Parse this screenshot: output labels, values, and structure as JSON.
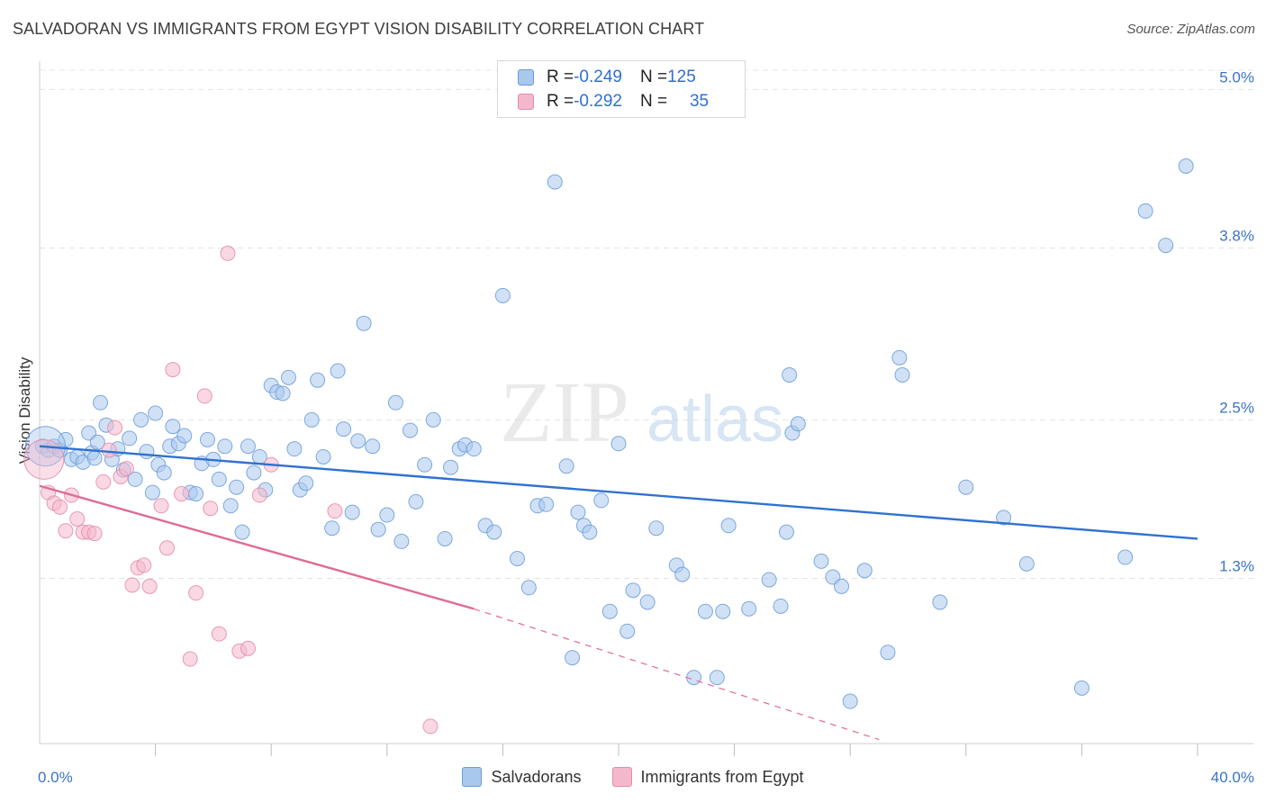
{
  "title": "SALVADORAN VS IMMIGRANTS FROM EGYPT VISION DISABILITY CORRELATION CHART",
  "source": "Source: ZipAtlas.com",
  "watermark": {
    "zip": "ZIP",
    "atlas": "atlas"
  },
  "colors": {
    "blue_fill": "#a9c8ee",
    "blue_stroke": "#6a9bd8",
    "blue_line": "#2f72d1",
    "pink_fill": "#f4b8cc",
    "pink_stroke": "#e68aa8",
    "pink_line": "#e06b95",
    "tick_text": "#3b73c7",
    "grid": "#e4e4e4"
  },
  "legend": {
    "rows": [
      {
        "r_label": "R = ",
        "r_value": "-0.249",
        "n_label": "N = ",
        "n_value": "125",
        "series": "blue"
      },
      {
        "r_label": "R = ",
        "r_value": "-0.292",
        "n_label": "N = ",
        "n_value": "35",
        "series": "pink"
      }
    ]
  },
  "bottom_legend": [
    {
      "label": "Salvadorans",
      "series": "blue"
    },
    {
      "label": "Immigrants from Egypt",
      "series": "pink"
    }
  ],
  "chart_data": {
    "type": "scatter",
    "title": "SALVADORAN VS IMMIGRANTS FROM EGYPT VISION DISABILITY CORRELATION CHART",
    "xlabel": "",
    "ylabel": "Vision Disability",
    "xlim": [
      0,
      40
    ],
    "ylim": [
      0.05,
      5.2
    ],
    "x_tick_labels": [
      {
        "value": 0,
        "label": "0.0%"
      },
      {
        "value": 40,
        "label": "40.0%"
      }
    ],
    "y_ticks": [
      {
        "value": 1.3,
        "label": "1.3%"
      },
      {
        "value": 2.5,
        "label": "2.5%"
      },
      {
        "value": 3.8,
        "label": "3.8%"
      },
      {
        "value": 5.0,
        "label": "5.0%"
      }
    ],
    "grid": true,
    "legend_position": "top-center",
    "series": [
      {
        "name": "Salvadorans",
        "color": "#a9c8ee",
        "points": [
          [
            0.1,
            2.3
          ],
          [
            0.3,
            2.27
          ],
          [
            0.5,
            2.3
          ],
          [
            0.7,
            2.27
          ],
          [
            0.9,
            2.35
          ],
          [
            1.1,
            2.2
          ],
          [
            1.3,
            2.22
          ],
          [
            1.5,
            2.18
          ],
          [
            1.7,
            2.4
          ],
          [
            1.8,
            2.25
          ],
          [
            1.9,
            2.21
          ],
          [
            2.0,
            2.33
          ],
          [
            2.1,
            2.63
          ],
          [
            2.3,
            2.46
          ],
          [
            2.5,
            2.2
          ],
          [
            2.7,
            2.28
          ],
          [
            2.9,
            2.12
          ],
          [
            3.1,
            2.36
          ],
          [
            3.3,
            2.05
          ],
          [
            3.5,
            2.5
          ],
          [
            3.7,
            2.26
          ],
          [
            3.9,
            1.95
          ],
          [
            4.0,
            2.55
          ],
          [
            4.1,
            2.16
          ],
          [
            4.3,
            2.1
          ],
          [
            4.5,
            2.3
          ],
          [
            4.6,
            2.45
          ],
          [
            4.8,
            2.32
          ],
          [
            5.0,
            2.38
          ],
          [
            5.2,
            1.95
          ],
          [
            5.4,
            1.94
          ],
          [
            5.6,
            2.17
          ],
          [
            5.8,
            2.35
          ],
          [
            6.0,
            2.2
          ],
          [
            6.2,
            2.05
          ],
          [
            6.4,
            2.3
          ],
          [
            6.6,
            1.85
          ],
          [
            6.8,
            1.99
          ],
          [
            7.0,
            1.65
          ],
          [
            7.2,
            2.3
          ],
          [
            7.4,
            2.1
          ],
          [
            7.6,
            2.22
          ],
          [
            7.8,
            1.97
          ],
          [
            8.0,
            2.76
          ],
          [
            8.2,
            2.71
          ],
          [
            8.4,
            2.7
          ],
          [
            8.6,
            2.82
          ],
          [
            8.8,
            2.28
          ],
          [
            9.0,
            1.97
          ],
          [
            9.2,
            2.02
          ],
          [
            9.4,
            2.5
          ],
          [
            9.6,
            2.8
          ],
          [
            9.8,
            2.22
          ],
          [
            10.1,
            1.68
          ],
          [
            10.3,
            2.87
          ],
          [
            10.5,
            2.43
          ],
          [
            10.8,
            1.8
          ],
          [
            11.0,
            2.34
          ],
          [
            11.2,
            3.23
          ],
          [
            11.5,
            2.3
          ],
          [
            11.7,
            1.67
          ],
          [
            12.0,
            1.78
          ],
          [
            12.3,
            2.63
          ],
          [
            12.5,
            1.58
          ],
          [
            12.8,
            2.42
          ],
          [
            13.0,
            1.88
          ],
          [
            13.3,
            2.16
          ],
          [
            13.6,
            2.5
          ],
          [
            14.0,
            1.6
          ],
          [
            14.2,
            2.14
          ],
          [
            14.5,
            2.28
          ],
          [
            14.7,
            2.31
          ],
          [
            15.0,
            2.28
          ],
          [
            15.4,
            1.7
          ],
          [
            15.7,
            1.65
          ],
          [
            16.0,
            3.44
          ],
          [
            16.5,
            1.45
          ],
          [
            16.9,
            1.23
          ],
          [
            17.2,
            1.85
          ],
          [
            17.5,
            1.86
          ],
          [
            17.8,
            4.3
          ],
          [
            18.2,
            2.15
          ],
          [
            18.4,
            0.7
          ],
          [
            18.6,
            1.8
          ],
          [
            18.8,
            1.7
          ],
          [
            19.0,
            1.65
          ],
          [
            19.4,
            1.89
          ],
          [
            19.7,
            1.05
          ],
          [
            20.0,
            2.32
          ],
          [
            20.3,
            0.9
          ],
          [
            20.5,
            1.21
          ],
          [
            21.0,
            1.12
          ],
          [
            21.3,
            1.68
          ],
          [
            22.0,
            1.4
          ],
          [
            22.2,
            1.33
          ],
          [
            22.6,
            0.55
          ],
          [
            23.0,
            1.05
          ],
          [
            23.4,
            0.55
          ],
          [
            23.6,
            1.05
          ],
          [
            23.8,
            1.7
          ],
          [
            24.5,
            1.07
          ],
          [
            25.2,
            1.29
          ],
          [
            25.6,
            1.09
          ],
          [
            25.8,
            1.65
          ],
          [
            26.0,
            2.4
          ],
          [
            26.2,
            2.47
          ],
          [
            27.0,
            1.43
          ],
          [
            27.4,
            1.31
          ],
          [
            27.7,
            1.24
          ],
          [
            28.0,
            0.37
          ],
          [
            28.5,
            1.36
          ],
          [
            29.3,
            0.74
          ],
          [
            29.7,
            2.97
          ],
          [
            29.8,
            2.84
          ],
          [
            31.1,
            1.12
          ],
          [
            32.0,
            1.99
          ],
          [
            33.3,
            1.76
          ],
          [
            34.1,
            1.41
          ],
          [
            36.0,
            0.47
          ],
          [
            37.5,
            1.46
          ],
          [
            38.2,
            4.08
          ],
          [
            38.9,
            3.82
          ],
          [
            39.6,
            4.42
          ],
          [
            25.9,
            2.84
          ],
          [
            0.2,
            2.3
          ]
        ]
      },
      {
        "name": "Immigrants from Egypt",
        "color": "#f4b8cc",
        "points": [
          [
            0.15,
            2.2
          ],
          [
            0.3,
            1.95
          ],
          [
            0.5,
            1.87
          ],
          [
            0.7,
            1.84
          ],
          [
            0.9,
            1.66
          ],
          [
            1.1,
            1.93
          ],
          [
            1.3,
            1.75
          ],
          [
            1.5,
            1.65
          ],
          [
            1.7,
            1.65
          ],
          [
            1.9,
            1.64
          ],
          [
            2.2,
            2.03
          ],
          [
            2.4,
            2.27
          ],
          [
            2.6,
            2.44
          ],
          [
            2.8,
            2.07
          ],
          [
            3.0,
            2.13
          ],
          [
            3.2,
            1.25
          ],
          [
            3.4,
            1.38
          ],
          [
            3.6,
            1.4
          ],
          [
            3.8,
            1.24
          ],
          [
            4.2,
            1.85
          ],
          [
            4.4,
            1.53
          ],
          [
            4.6,
            2.88
          ],
          [
            4.9,
            1.94
          ],
          [
            5.2,
            0.69
          ],
          [
            5.4,
            1.19
          ],
          [
            5.7,
            2.68
          ],
          [
            5.9,
            1.83
          ],
          [
            6.2,
            0.88
          ],
          [
            6.5,
            3.76
          ],
          [
            6.9,
            0.75
          ],
          [
            7.2,
            0.77
          ],
          [
            7.6,
            1.93
          ],
          [
            8.0,
            2.16
          ],
          [
            10.2,
            1.81
          ],
          [
            13.5,
            0.18
          ]
        ]
      }
    ],
    "trend_lines": [
      {
        "series": "Salvadorans",
        "x": [
          0,
          40
        ],
        "y": [
          2.3,
          1.6
        ],
        "style": "solid"
      },
      {
        "series": "Immigrants from Egypt",
        "x": [
          0,
          15
        ],
        "y": [
          2.0,
          1.07
        ],
        "style": "solid"
      },
      {
        "series": "Immigrants from Egypt",
        "x": [
          15,
          29
        ],
        "y": [
          1.07,
          0.08
        ],
        "style": "dashed"
      }
    ]
  }
}
